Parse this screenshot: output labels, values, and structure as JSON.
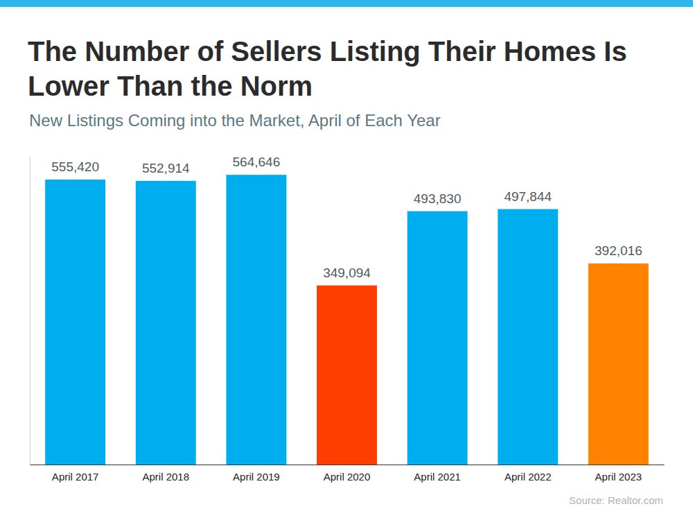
{
  "chart_data": {
    "type": "bar",
    "title": "The Number of Sellers Listing Their Homes Is Lower Than the Norm",
    "subtitle": "New Listings Coming into the Market, April of Each Year",
    "source": "Source: Realtor.com",
    "categories": [
      "April 2017",
      "April 2018",
      "April 2019",
      "April 2020",
      "April 2021",
      "April 2022",
      "April 2023"
    ],
    "values": [
      555420,
      552914,
      564646,
      349094,
      493830,
      497844,
      392016
    ],
    "value_labels": [
      "555,420",
      "552,914",
      "564,646",
      "349,094",
      "493,830",
      "497,844",
      "392,016"
    ],
    "colors": [
      "#00aeef",
      "#00aeef",
      "#00aeef",
      "#ff3d00",
      "#00aeef",
      "#00aeef",
      "#ff8200"
    ],
    "ylim": [
      0,
      600000
    ],
    "grid": false,
    "data_labels": true,
    "tick_labels": "x"
  }
}
